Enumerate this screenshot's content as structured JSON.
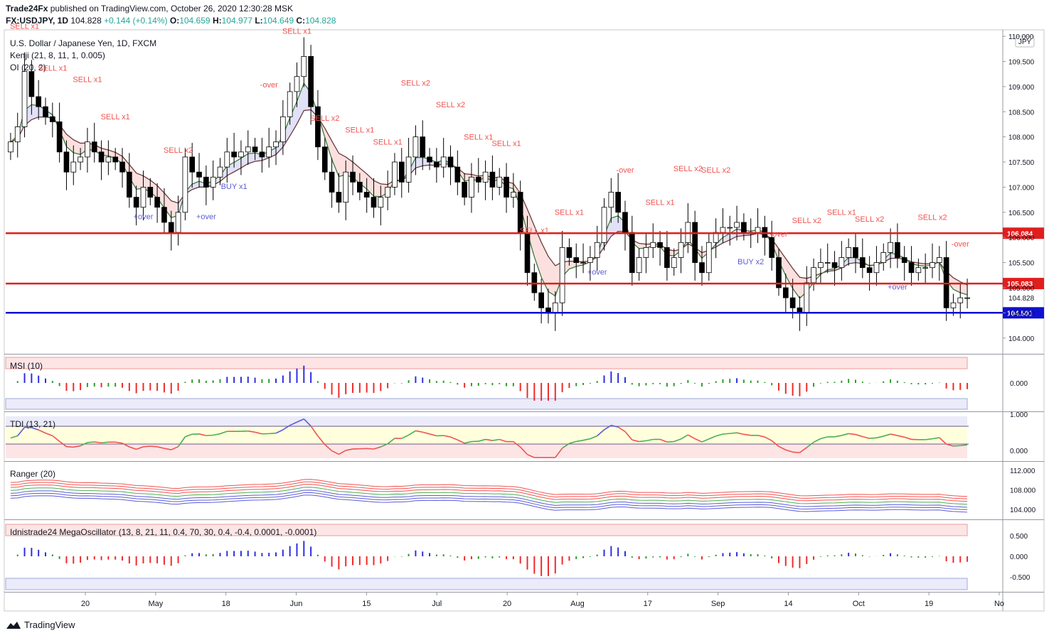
{
  "header": {
    "publisher": "Trade24Fx",
    "published_text": "published on TradingView.com, October 26, 2020 12:30:28 MSK",
    "symbol": "FX:USDJPY, 1D",
    "last": "104.828",
    "change": "+0.144 (+0.14%)",
    "open_label": "O:",
    "open": "104.659",
    "high_label": "H:",
    "high": "104.977",
    "low_label": "L:",
    "low": "104.649",
    "close_label": "C:",
    "close": "104.828"
  },
  "legend": {
    "title": "U.S. Dollar / Japanese Yen, 1D, FXCM",
    "kenji": "Kenji (21, 8, 11, 1, 0.005)",
    "oi": "OI (20, 2)"
  },
  "footer": {
    "brand": "TradingView"
  },
  "colors": {
    "up": "#ffffff",
    "down": "#000000",
    "sell": "#ef5350",
    "buy": "#5b5bd6",
    "red_line": "#e01e1e",
    "blue_line": "#1010d0"
  },
  "chart_data": [
    {
      "type": "candlestick",
      "title": "U.S. Dollar / Japanese Yen, 1D, FXCM",
      "currency_badge": "JPY",
      "ylim": [
        103.7,
        110.1
      ],
      "y_ticks": [
        "110.000",
        "109.500",
        "109.000",
        "108.500",
        "108.000",
        "107.500",
        "107.000",
        "106.500",
        "106.000",
        "105.500",
        "105.000",
        "104.500",
        "104.000"
      ],
      "x_ticks": [
        "20",
        "May",
        "18",
        "Jun",
        "15",
        "Jul",
        "20",
        "Aug",
        "17",
        "Sep",
        "14",
        "Oct",
        "19",
        "No"
      ],
      "horizontal_lines": [
        {
          "value": 106.084,
          "label": "106.084",
          "color": "#e01e1e"
        },
        {
          "value": 105.083,
          "label": "105.083",
          "color": "#e01e1e"
        },
        {
          "value": 104.501,
          "label": "104.501",
          "color": "#1010d0"
        }
      ],
      "last_price_label": "104.828",
      "closes": [
        107.9,
        108.2,
        109.3,
        108.8,
        108.6,
        108.4,
        108.3,
        107.7,
        107.3,
        107.5,
        107.6,
        107.9,
        107.7,
        107.5,
        107.6,
        107.5,
        107.3,
        106.8,
        106.6,
        107.0,
        106.8,
        106.6,
        106.3,
        106.1,
        106.5,
        107.6,
        107.3,
        107.2,
        107.0,
        107.2,
        107.4,
        107.7,
        107.6,
        107.7,
        107.8,
        107.7,
        107.6,
        107.8,
        107.9,
        108.4,
        108.9,
        109.2,
        109.6,
        108.6,
        107.8,
        107.3,
        106.9,
        106.7,
        107.3,
        107.1,
        106.9,
        106.8,
        106.6,
        106.8,
        107.0,
        107.5,
        107.1,
        107.6,
        108.0,
        107.6,
        107.5,
        107.4,
        107.6,
        107.4,
        107.1,
        106.8,
        107.2,
        107.1,
        107.3,
        107.0,
        107.2,
        106.8,
        106.9,
        106.1,
        105.3,
        104.9,
        104.6,
        104.5,
        104.7,
        105.8,
        105.6,
        105.5,
        105.5,
        105.6,
        105.9,
        106.6,
        106.9,
        106.5,
        106.1,
        105.3,
        105.6,
        105.8,
        105.9,
        105.8,
        105.4,
        105.6,
        105.9,
        106.3,
        105.5,
        105.3,
        105.9,
        106.1,
        106.2,
        106.2,
        106.3,
        106.1,
        106.1,
        106.2,
        106.0,
        105.6,
        105.0,
        104.8,
        104.6,
        104.5,
        105.1,
        105.4,
        105.5,
        105.5,
        105.4,
        105.6,
        105.8,
        105.6,
        105.4,
        105.3,
        105.5,
        105.7,
        105.9,
        105.6,
        105.5,
        105.3,
        105.4,
        105.4,
        105.5,
        105.6,
        104.6,
        104.7,
        104.8,
        104.8
      ],
      "series": [
        {
          "name": "Kenji (21, 8, 11, 1, 0.005)"
        },
        {
          "name": "OI (20, 2)"
        }
      ],
      "signals": [
        {
          "text": "SELL x1",
          "color": "#ef5350"
        },
        {
          "text": "SELL x1",
          "color": "#ef5350"
        },
        {
          "text": "SELL x1",
          "color": "#ef5350"
        },
        {
          "text": "SELL x1",
          "color": "#ef5350"
        },
        {
          "text": "+over",
          "color": "#5b5bd6"
        },
        {
          "text": "SELL x2",
          "color": "#ef5350"
        },
        {
          "text": "+over",
          "color": "#5b5bd6"
        },
        {
          "text": "BUY x1",
          "color": "#5b5bd6"
        },
        {
          "text": "-over",
          "color": "#ef5350"
        },
        {
          "text": "SELL x1",
          "color": "#ef5350"
        },
        {
          "text": "SELL x2",
          "color": "#ef5350"
        },
        {
          "text": "SELL x1",
          "color": "#ef5350"
        },
        {
          "text": "SELL x1",
          "color": "#ef5350"
        },
        {
          "text": "SELL x2",
          "color": "#ef5350"
        },
        {
          "text": "SELL x2",
          "color": "#ef5350"
        },
        {
          "text": "SELL x1",
          "color": "#ef5350"
        },
        {
          "text": "SELL x1",
          "color": "#ef5350"
        },
        {
          "text": "SELL x1",
          "color": "#ef5350"
        },
        {
          "text": "SELL x1",
          "color": "#ef5350"
        },
        {
          "text": "+over",
          "color": "#5b5bd6"
        },
        {
          "text": "-over",
          "color": "#ef5350"
        },
        {
          "text": "SELL x1",
          "color": "#ef5350"
        },
        {
          "text": "SELL x2",
          "color": "#ef5350"
        },
        {
          "text": "SELL x2",
          "color": "#ef5350"
        },
        {
          "text": "BUY x2",
          "color": "#5b5bd6"
        },
        {
          "text": "-over",
          "color": "#ef5350"
        },
        {
          "text": "SELL x2",
          "color": "#ef5350"
        },
        {
          "text": "SELL x1",
          "color": "#ef5350"
        },
        {
          "text": "SELL x2",
          "color": "#ef5350"
        },
        {
          "text": "+over",
          "color": "#5b5bd6"
        },
        {
          "text": "SELL x2",
          "color": "#ef5350"
        },
        {
          "text": "-over",
          "color": "#ef5350"
        }
      ]
    },
    {
      "type": "bar",
      "title": "MSI (10)",
      "y_ticks": [
        "0.000"
      ]
    },
    {
      "type": "line",
      "title": "TDI (13, 21)",
      "y_ticks": [
        "1.000",
        "0.000"
      ]
    },
    {
      "type": "line",
      "title": "Ranger (20)",
      "y_ticks": [
        "112.000",
        "108.000",
        "104.000"
      ]
    },
    {
      "type": "bar",
      "title": "Idnistrade24 MegaOscillator (13, 8, 21, 11, 0.4, 70, 30, 0.4, -0.4, 0.0001, -0.0001)",
      "y_ticks": [
        "0.500",
        "0.000",
        "-0.500"
      ]
    }
  ]
}
